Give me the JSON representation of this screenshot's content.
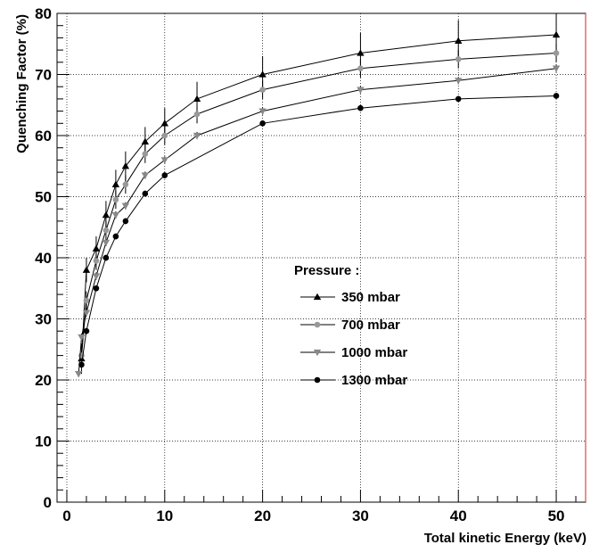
{
  "chart_data": {
    "type": "line",
    "title": "",
    "xlabel": "Total kinetic Energy (keV)",
    "ylabel": "Quenching Factor (%)",
    "xlim": [
      -1,
      53
    ],
    "ylim": [
      0,
      80
    ],
    "xticks": [
      0,
      10,
      20,
      30,
      40,
      50
    ],
    "yticks": [
      0,
      10,
      20,
      30,
      40,
      50,
      60,
      70,
      80
    ],
    "grid": true,
    "legend_placement": "center-right",
    "legend_title": "Pressure :",
    "series": [
      {
        "name": "350 mbar",
        "marker": "triangle-up",
        "color": "#000000",
        "x": [
          1.5,
          2,
          3,
          4,
          5,
          6,
          8,
          10,
          13.3,
          20,
          30,
          40,
          50
        ],
        "y": [
          23.5,
          38,
          41.5,
          47,
          52,
          55,
          59,
          62,
          66,
          70,
          73.5,
          75.5,
          76.5
        ],
        "err": [
          2.5,
          2,
          2,
          2.3,
          2.4,
          2.4,
          2.4,
          2.5,
          2.8,
          3,
          3.3,
          3.4,
          3.5
        ]
      },
      {
        "name": "700 mbar",
        "marker": "circle",
        "color": "#999999",
        "x": [
          1.5,
          2,
          3,
          4,
          5,
          6,
          8,
          10,
          13.3,
          20,
          30,
          40,
          50
        ],
        "y": [
          24,
          33,
          39.5,
          44.5,
          49.5,
          52,
          57,
          60,
          63.5,
          67.5,
          71,
          72.5,
          73.5
        ],
        "err": [
          1.5,
          1.5,
          1.5,
          1.5,
          1.5,
          1.5,
          1.5,
          1.5,
          1.5,
          1.5,
          1.5,
          1.5,
          1.5
        ]
      },
      {
        "name": "1000 mbar",
        "marker": "triangle-down",
        "color": "#888888",
        "x": [
          1.2,
          1.5,
          2,
          3,
          4,
          5,
          6,
          8,
          10,
          13.3,
          20,
          30,
          40,
          50
        ],
        "y": [
          21,
          27,
          31,
          37,
          42.5,
          47,
          48.5,
          53.5,
          56,
          60,
          64,
          67.5,
          69,
          71
        ],
        "err": [
          0.5,
          0.6,
          0.6,
          0.6,
          0.6,
          0.6,
          0.6,
          0.6,
          0.6,
          0.6,
          0.6,
          0.6,
          0.6,
          0.6
        ]
      },
      {
        "name": "1300 mbar",
        "marker": "circle",
        "color": "#000000",
        "x": [
          1.5,
          2,
          3,
          4,
          5,
          6,
          8,
          10,
          20,
          30,
          40,
          50
        ],
        "y": [
          22.5,
          28,
          35,
          40,
          43.5,
          46,
          50.5,
          53.5,
          62,
          64.5,
          66,
          66.5
        ],
        "err": [
          0.5,
          0.5,
          0.5,
          0.5,
          0.5,
          0.5,
          0.5,
          0.5,
          0.5,
          0.5,
          0.5,
          0.5
        ]
      }
    ]
  }
}
